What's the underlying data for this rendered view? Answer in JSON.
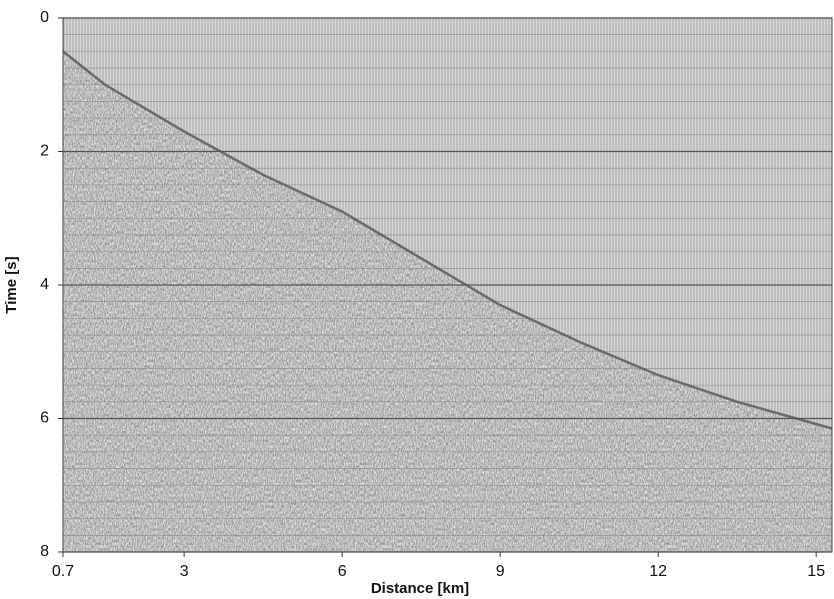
{
  "chart_data": {
    "type": "seismic",
    "x_label": "Distance [km]",
    "y_label": "Time [s]",
    "x": [
      0.7,
      1.5,
      3,
      4.5,
      6,
      7.5,
      9,
      10.5,
      12,
      13.5,
      15.3
    ],
    "values": [
      0.5,
      1.0,
      1.7,
      2.35,
      2.9,
      3.6,
      4.3,
      4.85,
      5.35,
      5.75,
      6.15
    ],
    "color": "#555555",
    "xlim": [
      0.7,
      15.3
    ],
    "xticks": [
      0.7,
      3,
      6,
      9,
      12,
      15
    ],
    "ylim": [
      0,
      8
    ],
    "yticks": [
      0,
      2,
      4,
      6,
      8
    ],
    "y_inverted": true
  }
}
